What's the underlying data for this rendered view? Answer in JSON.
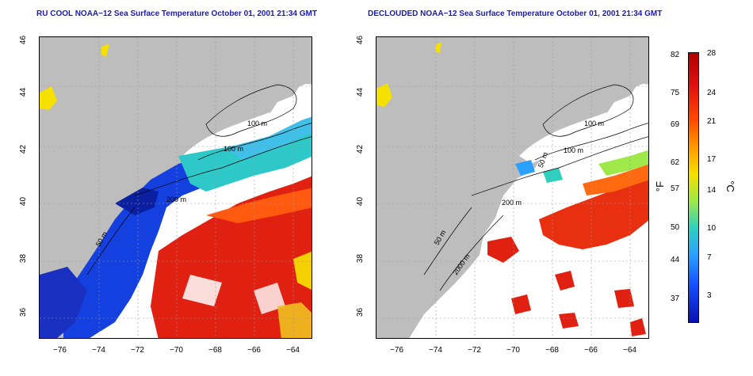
{
  "titles": {
    "left": "RU COOL NOAA−12 Sea Surface Temperature October 01, 2001 21:34 GMT",
    "right": "DECLOUDED NOAA−12 Sea Surface Temperature October 01, 2001 21:34 GMT"
  },
  "axes": {
    "lat_ticks": [
      "46",
      "44",
      "42",
      "40",
      "38",
      "36"
    ],
    "lon_ticks": [
      "−76",
      "−74",
      "−72",
      "−70",
      "−68",
      "−66",
      "−64"
    ]
  },
  "contour_labels": {
    "left": [
      "100 m",
      "100 m",
      "200 m",
      "50 m"
    ],
    "right": [
      "100 m",
      "100 m",
      "50 m",
      "200 m",
      "50 m",
      "2000 m"
    ]
  },
  "colorbar": {
    "fahrenheit_ticks": [
      "82",
      "75",
      "69",
      "62",
      "57",
      "50",
      "44",
      "37"
    ],
    "celsius_ticks": [
      "28",
      "24",
      "21",
      "17",
      "14",
      "10",
      "7",
      "3"
    ],
    "unit_f": "°F",
    "unit_c": "°C",
    "colors": [
      "#b00000",
      "#ff4a00",
      "#f5e000",
      "#30d0c0",
      "#1550ff",
      "#0a10b0"
    ]
  },
  "colors": {
    "land": "#bdbdbd",
    "title": "#1a1ab0"
  }
}
